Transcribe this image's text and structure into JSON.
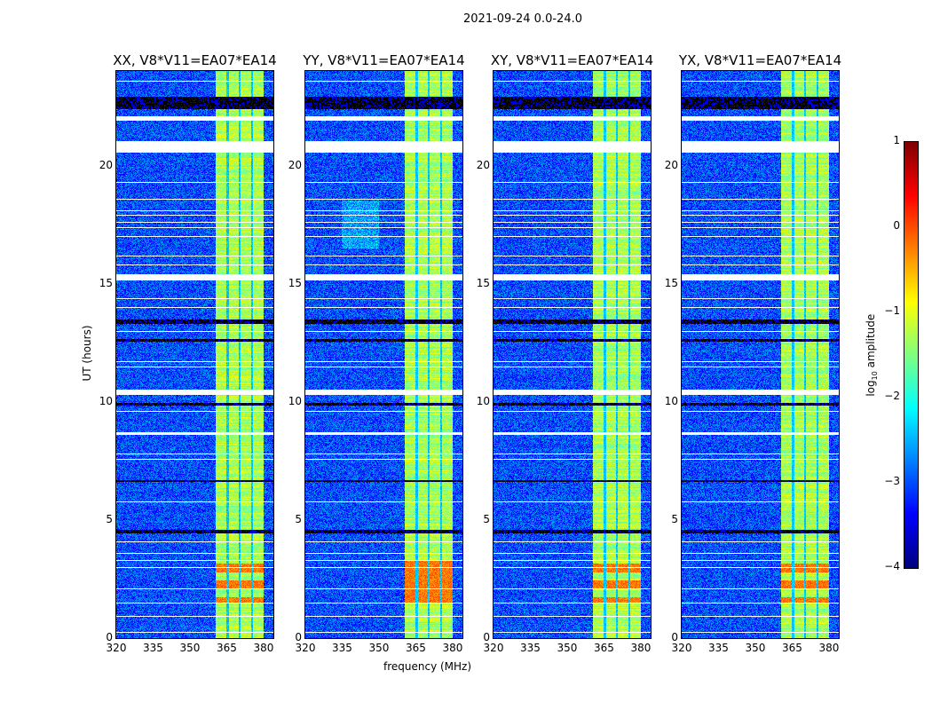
{
  "suptitle": "2021-09-24 0.0-24.0",
  "chart_data": {
    "type": "heatmap",
    "title": "2021-09-24 0.0-24.0",
    "xlabel": "frequency (MHz)",
    "ylabel": "UT (hours)",
    "xlim": [
      320,
      384
    ],
    "ylim": [
      0,
      24
    ],
    "xticks": [
      "320",
      "335",
      "350",
      "365",
      "380"
    ],
    "xtick_values": [
      320,
      335,
      350,
      365,
      380
    ],
    "yticks": [
      "0",
      "5",
      "10",
      "15",
      "20"
    ],
    "ytick_values": [
      0,
      5,
      10,
      15,
      20
    ],
    "panels": [
      {
        "title": "XX, V8*V11=EA07*EA14"
      },
      {
        "title": "YY, V8*V11=EA07*EA14"
      },
      {
        "title": "XY, V8*V11=EA07*EA14"
      },
      {
        "title": "YX, V8*V11=EA07*EA14"
      }
    ],
    "background_log_amp": -3.0,
    "rfi_band_mhz": [
      360.5,
      380
    ],
    "rfi_band_log_amp": -1.3,
    "rfi_dark_channels_mhz": [
      365.5,
      370.3,
      375.3
    ],
    "strong_rfi_hours": [
      1.5,
      3.3
    ],
    "strong_rfi_log_amp": -0.2,
    "flagged_gaps_hours": [
      [
        20.56,
        21.05
      ],
      [
        21.9,
        22.1
      ],
      [
        15.13,
        15.39
      ],
      [
        10.3,
        10.52
      ],
      [
        8.6,
        8.72
      ]
    ],
    "black_rows_hours": [
      [
        22.4,
        22.9
      ],
      [
        13.3,
        13.5
      ],
      [
        12.55,
        12.65
      ],
      [
        9.85,
        9.95
      ],
      [
        4.45,
        4.6
      ],
      [
        6.6,
        6.68
      ]
    ],
    "thin_flag_hours": [
      0.25,
      0.95,
      1.5,
      2.1,
      3.0,
      3.3,
      3.6,
      4.1,
      5.8,
      7.6,
      7.8,
      9.6,
      11.5,
      11.7,
      13.0,
      14.0,
      14.4,
      15.8,
      16.2,
      17.0,
      17.4,
      17.6,
      17.9,
      18.1,
      18.6,
      19.3,
      20.6,
      22.0,
      23.6
    ],
    "colorbar": {
      "label_prefix": "log",
      "label_sub": "10",
      "label_suffix": " amplitude",
      "range": [
        -4,
        1
      ],
      "ticks": [
        "1",
        "0",
        "−1",
        "−2",
        "−3",
        "−4"
      ],
      "tick_values": [
        1,
        0,
        -1,
        -2,
        -3,
        -4
      ],
      "colormap": "jet"
    }
  }
}
